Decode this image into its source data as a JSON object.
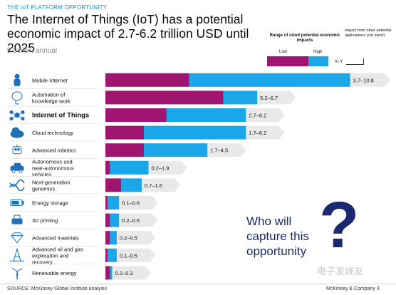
{
  "header": {
    "kicker": "THE IoT PLATFORM OPPORTUNITY",
    "title": "The Internet of Things (IoT) has a potential economic impact of 2.7-6.2 trillion USD until 2025",
    "subtitle": "$ trillion, annual"
  },
  "legend": {
    "title": "Range of sized potential economic impacts",
    "low_label": "Low",
    "high_label": "High",
    "other_title": "Impact from other potential applications (not sized)",
    "xy_label": "X–Y"
  },
  "colors": {
    "low": "#a0156f",
    "high": "#1aa6e8",
    "arrow": "#e9e9e9",
    "icon": "#1e6fb8"
  },
  "chart_data": {
    "type": "bar",
    "orientation": "horizontal",
    "stacked_range": true,
    "categories": [
      "Mobile Internet",
      "Automation of knowledge work",
      "Internet of Things",
      "Cloud technology",
      "Advanced robotics",
      "Autonomous and near-autonomous vehicles",
      "Next-generation genomics",
      "Energy storage",
      "3D printing",
      "Advanced materials",
      "Advanced oil and gas exploration and recovery",
      "Renewable energy"
    ],
    "series": [
      {
        "name": "Low",
        "values": [
          3.7,
          5.2,
          2.7,
          1.7,
          1.7,
          0.2,
          0.7,
          0.1,
          0.2,
          0.2,
          0.1,
          0.2
        ]
      },
      {
        "name": "High",
        "values": [
          10.8,
          6.7,
          6.2,
          6.2,
          4.5,
          1.9,
          1.6,
          0.6,
          0.6,
          0.5,
          0.5,
          0.3
        ]
      }
    ],
    "data_labels": [
      "3.7–10.8",
      "5.2–6.7",
      "2.7–6.2",
      "1.7–6.2",
      "1.7–4.5",
      "0.2–1.9",
      "0.7–1.6",
      "0.1–0.6",
      "0.2–0.6",
      "0.2–0.5",
      "0.1–0.5",
      "0.2–0.3"
    ],
    "highlighted_category": "Internet of Things",
    "xlim": [
      0,
      11
    ]
  },
  "row_icons": [
    "person-icon",
    "brain-icon",
    "iot-network-icon",
    "cloud-icon",
    "robot-icon",
    "car-icon",
    "dna-icon",
    "battery-icon",
    "printer-icon",
    "diamond-icon",
    "oil-rig-icon",
    "wind-turbine-icon"
  ],
  "callout": {
    "question_text": "Who will capture this opportunity",
    "question_mark": "?"
  },
  "footer": {
    "source": "SOURCE: McKinsey Global Institute analysis",
    "company": "McKinsey & Company   3",
    "watermark": "电子发烧友"
  }
}
